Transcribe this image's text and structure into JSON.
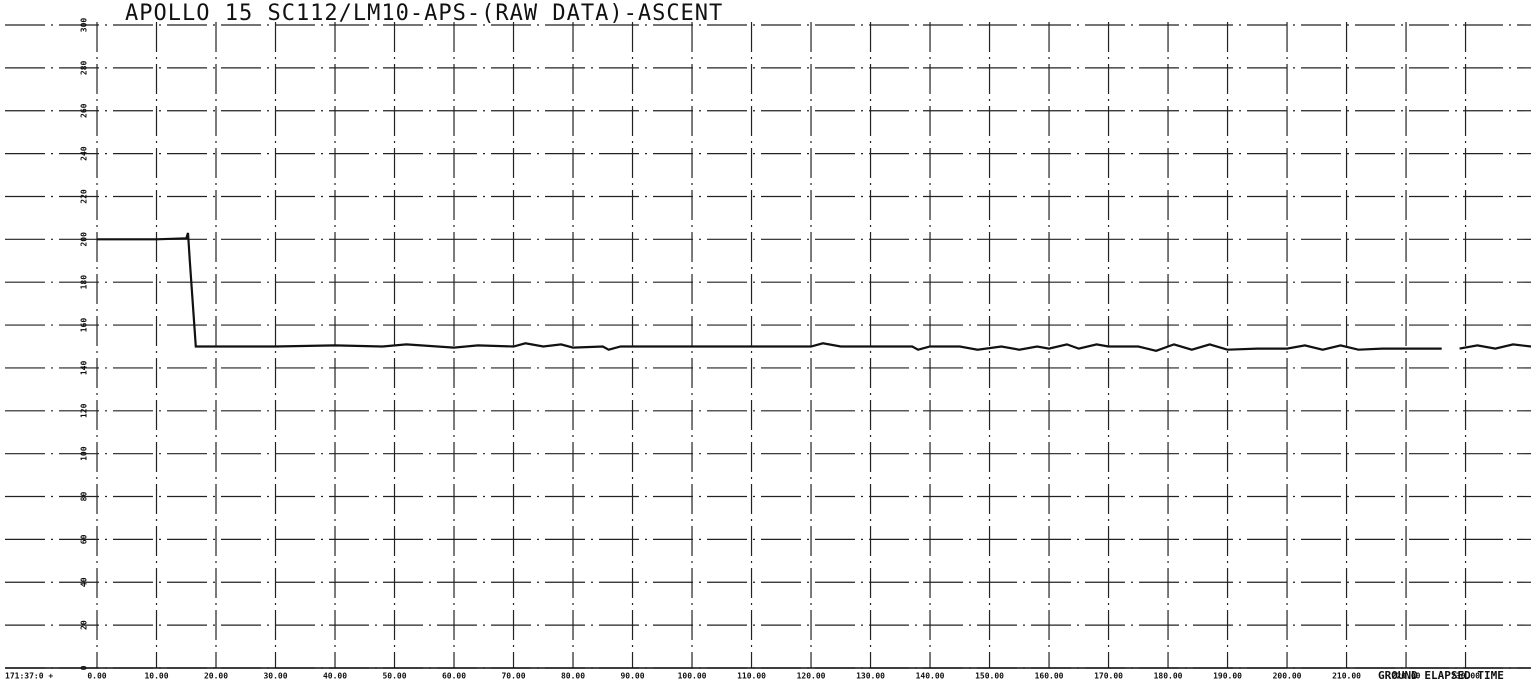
{
  "chart_data": {
    "type": "line",
    "title": "APOLLO 15 SC112/LM10-APS-(RAW DATA)-ASCENT",
    "x_label": "GROUND ELAPSED TIME",
    "x_origin_label": "171:37:0 +",
    "xlim": [
      0,
      241
    ],
    "xticks": [
      {
        "value": 0,
        "label": "0.00"
      },
      {
        "value": 10,
        "label": "10.00"
      },
      {
        "value": 20,
        "label": "20.00"
      },
      {
        "value": 30,
        "label": "30.00"
      },
      {
        "value": 40,
        "label": "40.00"
      },
      {
        "value": 50,
        "label": "50.00"
      },
      {
        "value": 60,
        "label": "60.00"
      },
      {
        "value": 70,
        "label": "70.00"
      },
      {
        "value": 80,
        "label": "80.00"
      },
      {
        "value": 90,
        "label": "90.00"
      },
      {
        "value": 100,
        "label": "100.00"
      },
      {
        "value": 110,
        "label": "110.00"
      },
      {
        "value": 120,
        "label": "120.00"
      },
      {
        "value": 130,
        "label": "130.00"
      },
      {
        "value": 140,
        "label": "140.00"
      },
      {
        "value": 150,
        "label": "150.00"
      },
      {
        "value": 160,
        "label": "160.00"
      },
      {
        "value": 170,
        "label": "170.00"
      },
      {
        "value": 180,
        "label": "180.00"
      },
      {
        "value": 190,
        "label": "190.00"
      },
      {
        "value": 200,
        "label": "200.00"
      },
      {
        "value": 210,
        "label": "210.00"
      },
      {
        "value": 220,
        "label": "220.00"
      },
      {
        "value": 230,
        "label": "230.00"
      }
    ],
    "ylim": [
      0,
      300
    ],
    "yticks": [
      0,
      20,
      40,
      60,
      80,
      100,
      120,
      140,
      160,
      180,
      200,
      220,
      240,
      260,
      280,
      300
    ],
    "grid": true,
    "series": [
      {
        "color": "#111111",
        "x": [
          0,
          5,
          10,
          15,
          15.3,
          15.6,
          16.6,
          20,
          30,
          40,
          48,
          52,
          60,
          64,
          70,
          72,
          75,
          78,
          80,
          85,
          86,
          88,
          95,
          100,
          110,
          120,
          122,
          125,
          130,
          137,
          138,
          140,
          145,
          148,
          152,
          155,
          158,
          160,
          163,
          165,
          168,
          170,
          175,
          178,
          181,
          184,
          187,
          190,
          195,
          200,
          203,
          206,
          209,
          212,
          216,
          226,
          227,
          229,
          232,
          235,
          238,
          241
        ],
        "values": [
          200,
          200,
          200,
          200.5,
          203,
          190,
          150,
          150,
          150,
          150.5,
          150,
          151,
          149.5,
          150.5,
          150,
          151.5,
          150,
          151,
          149.5,
          150,
          148.5,
          150,
          150,
          150,
          150,
          150,
          151.5,
          150,
          150,
          150,
          148.5,
          150,
          150,
          148.5,
          150,
          148.5,
          150,
          149,
          151,
          149,
          151,
          150,
          150,
          148,
          151,
          148.5,
          151,
          148.5,
          149,
          149,
          150.5,
          148.5,
          150.5,
          148.5,
          149,
          149,
          null,
          149,
          150.5,
          149,
          151,
          150
        ]
      }
    ]
  }
}
